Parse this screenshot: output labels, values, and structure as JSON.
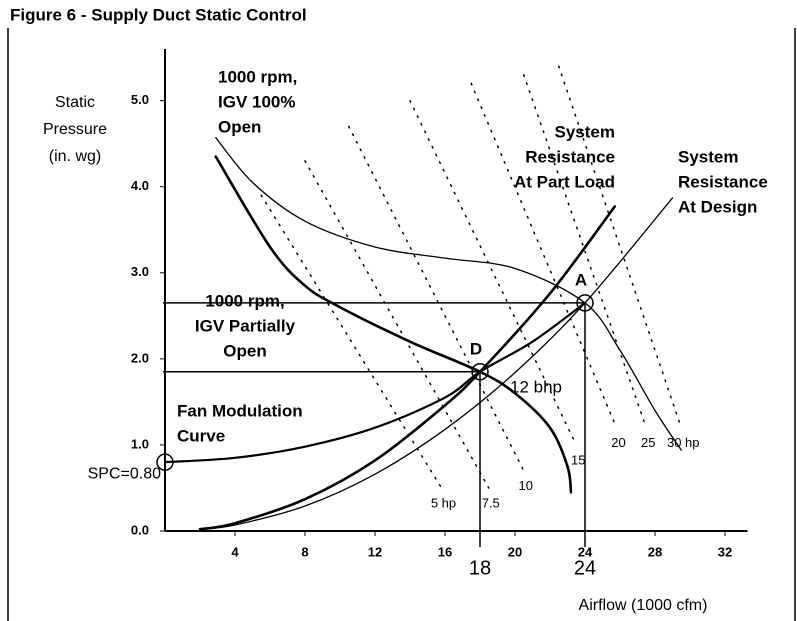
{
  "chart_data": {
    "type": "line",
    "title": "Figure 6 - Supply Duct Static Control",
    "ylabel": [
      "Static",
      "Pressure",
      "(in. wg)"
    ],
    "xlabel": "Airflow (1000 cfm)",
    "xlim": [
      0,
      35
    ],
    "ylim": [
      0,
      5.6
    ],
    "xticks": [
      4,
      8,
      12,
      16,
      20,
      24,
      28,
      32
    ],
    "yticks": [
      {
        "value": 0,
        "label": "0.0"
      },
      {
        "value": 1,
        "label": "1.0"
      },
      {
        "value": 2,
        "label": "2.0"
      },
      {
        "value": 3,
        "label": "3.0"
      },
      {
        "value": 4,
        "label": "4.0"
      },
      {
        "value": 5,
        "label": "5.0"
      }
    ],
    "color": "#000000",
    "series": [
      {
        "style": "solid",
        "width": 1.3,
        "x": [
          2.9,
          5,
          8,
          12,
          16,
          20,
          24,
          26,
          28,
          29.5
        ],
        "values": [
          4.57,
          4.05,
          3.6,
          3.3,
          3.17,
          3.05,
          2.65,
          2.1,
          1.4,
          0.94
        ]
      },
      {
        "style": "solid",
        "width": 2.6,
        "x": [
          2.9,
          6,
          8,
          10,
          14,
          18,
          20,
          22,
          23,
          23.2
        ],
        "values": [
          4.35,
          3.3,
          2.85,
          2.6,
          2.2,
          1.85,
          1.6,
          1.2,
          0.75,
          0.45
        ]
      },
      {
        "style": "solid",
        "width": 1.3,
        "x": [
          2,
          4,
          8,
          12,
          16,
          20,
          24,
          29
        ],
        "values": [
          0.02,
          0.07,
          0.29,
          0.66,
          1.18,
          1.84,
          2.65,
          3.87
        ]
      },
      {
        "style": "solid",
        "width": 2.6,
        "x": [
          2,
          4,
          8,
          12,
          16,
          18,
          22,
          25.7
        ],
        "values": [
          0.02,
          0.09,
          0.37,
          0.82,
          1.46,
          1.85,
          2.76,
          3.77
        ]
      },
      {
        "style": "solid",
        "width": 2.2,
        "x": [
          0,
          4,
          8,
          12,
          16,
          18,
          21,
          24
        ],
        "values": [
          0.8,
          0.85,
          0.98,
          1.2,
          1.55,
          1.85,
          2.2,
          2.65
        ]
      },
      {
        "name": "5 hp",
        "style": "dotted",
        "width": 1.5,
        "x": [
          5.5,
          15.8
        ],
        "values": [
          3.9,
          0.5
        ]
      },
      {
        "name": "7.5",
        "style": "dotted",
        "width": 1.5,
        "x": [
          8,
          18.5
        ],
        "values": [
          4.3,
          0.5
        ]
      },
      {
        "name": "10",
        "style": "dotted",
        "width": 1.5,
        "x": [
          10.5,
          20.5
        ],
        "values": [
          4.7,
          0.7
        ]
      },
      {
        "name": "15",
        "style": "dotted",
        "width": 1.5,
        "x": [
          14,
          23.5
        ],
        "values": [
          5.0,
          1.0
        ]
      },
      {
        "name": "20",
        "style": "dotted",
        "width": 1.5,
        "x": [
          17.5,
          25.8
        ],
        "values": [
          5.2,
          1.2
        ]
      },
      {
        "name": "25",
        "style": "dotted",
        "width": 1.5,
        "x": [
          20.5,
          27.5
        ],
        "values": [
          5.3,
          1.2
        ]
      },
      {
        "name": "30 hp",
        "style": "dotted",
        "width": 1.5,
        "x": [
          22.5,
          29.5
        ],
        "values": [
          5.4,
          1.2
        ]
      }
    ],
    "markers": [
      {
        "label": "D",
        "x": 18,
        "y": 1.85,
        "guides": true
      },
      {
        "label": "A",
        "x": 24,
        "y": 2.65,
        "guides": true
      },
      {
        "label": "SPC=0.80",
        "x": 0,
        "y": 0.8,
        "guides": false
      }
    ],
    "annotations": [
      [
        "1000 rpm,",
        "IGV 100%",
        "Open"
      ],
      [
        "System",
        "Resistance",
        "At Part Load"
      ],
      [
        "System",
        "Resistance",
        "At Design"
      ],
      [
        "1000 rpm,",
        "IGV Partially",
        "Open"
      ],
      [
        "Fan Modulation",
        "Curve"
      ],
      [
        "12 bhp"
      ]
    ]
  }
}
